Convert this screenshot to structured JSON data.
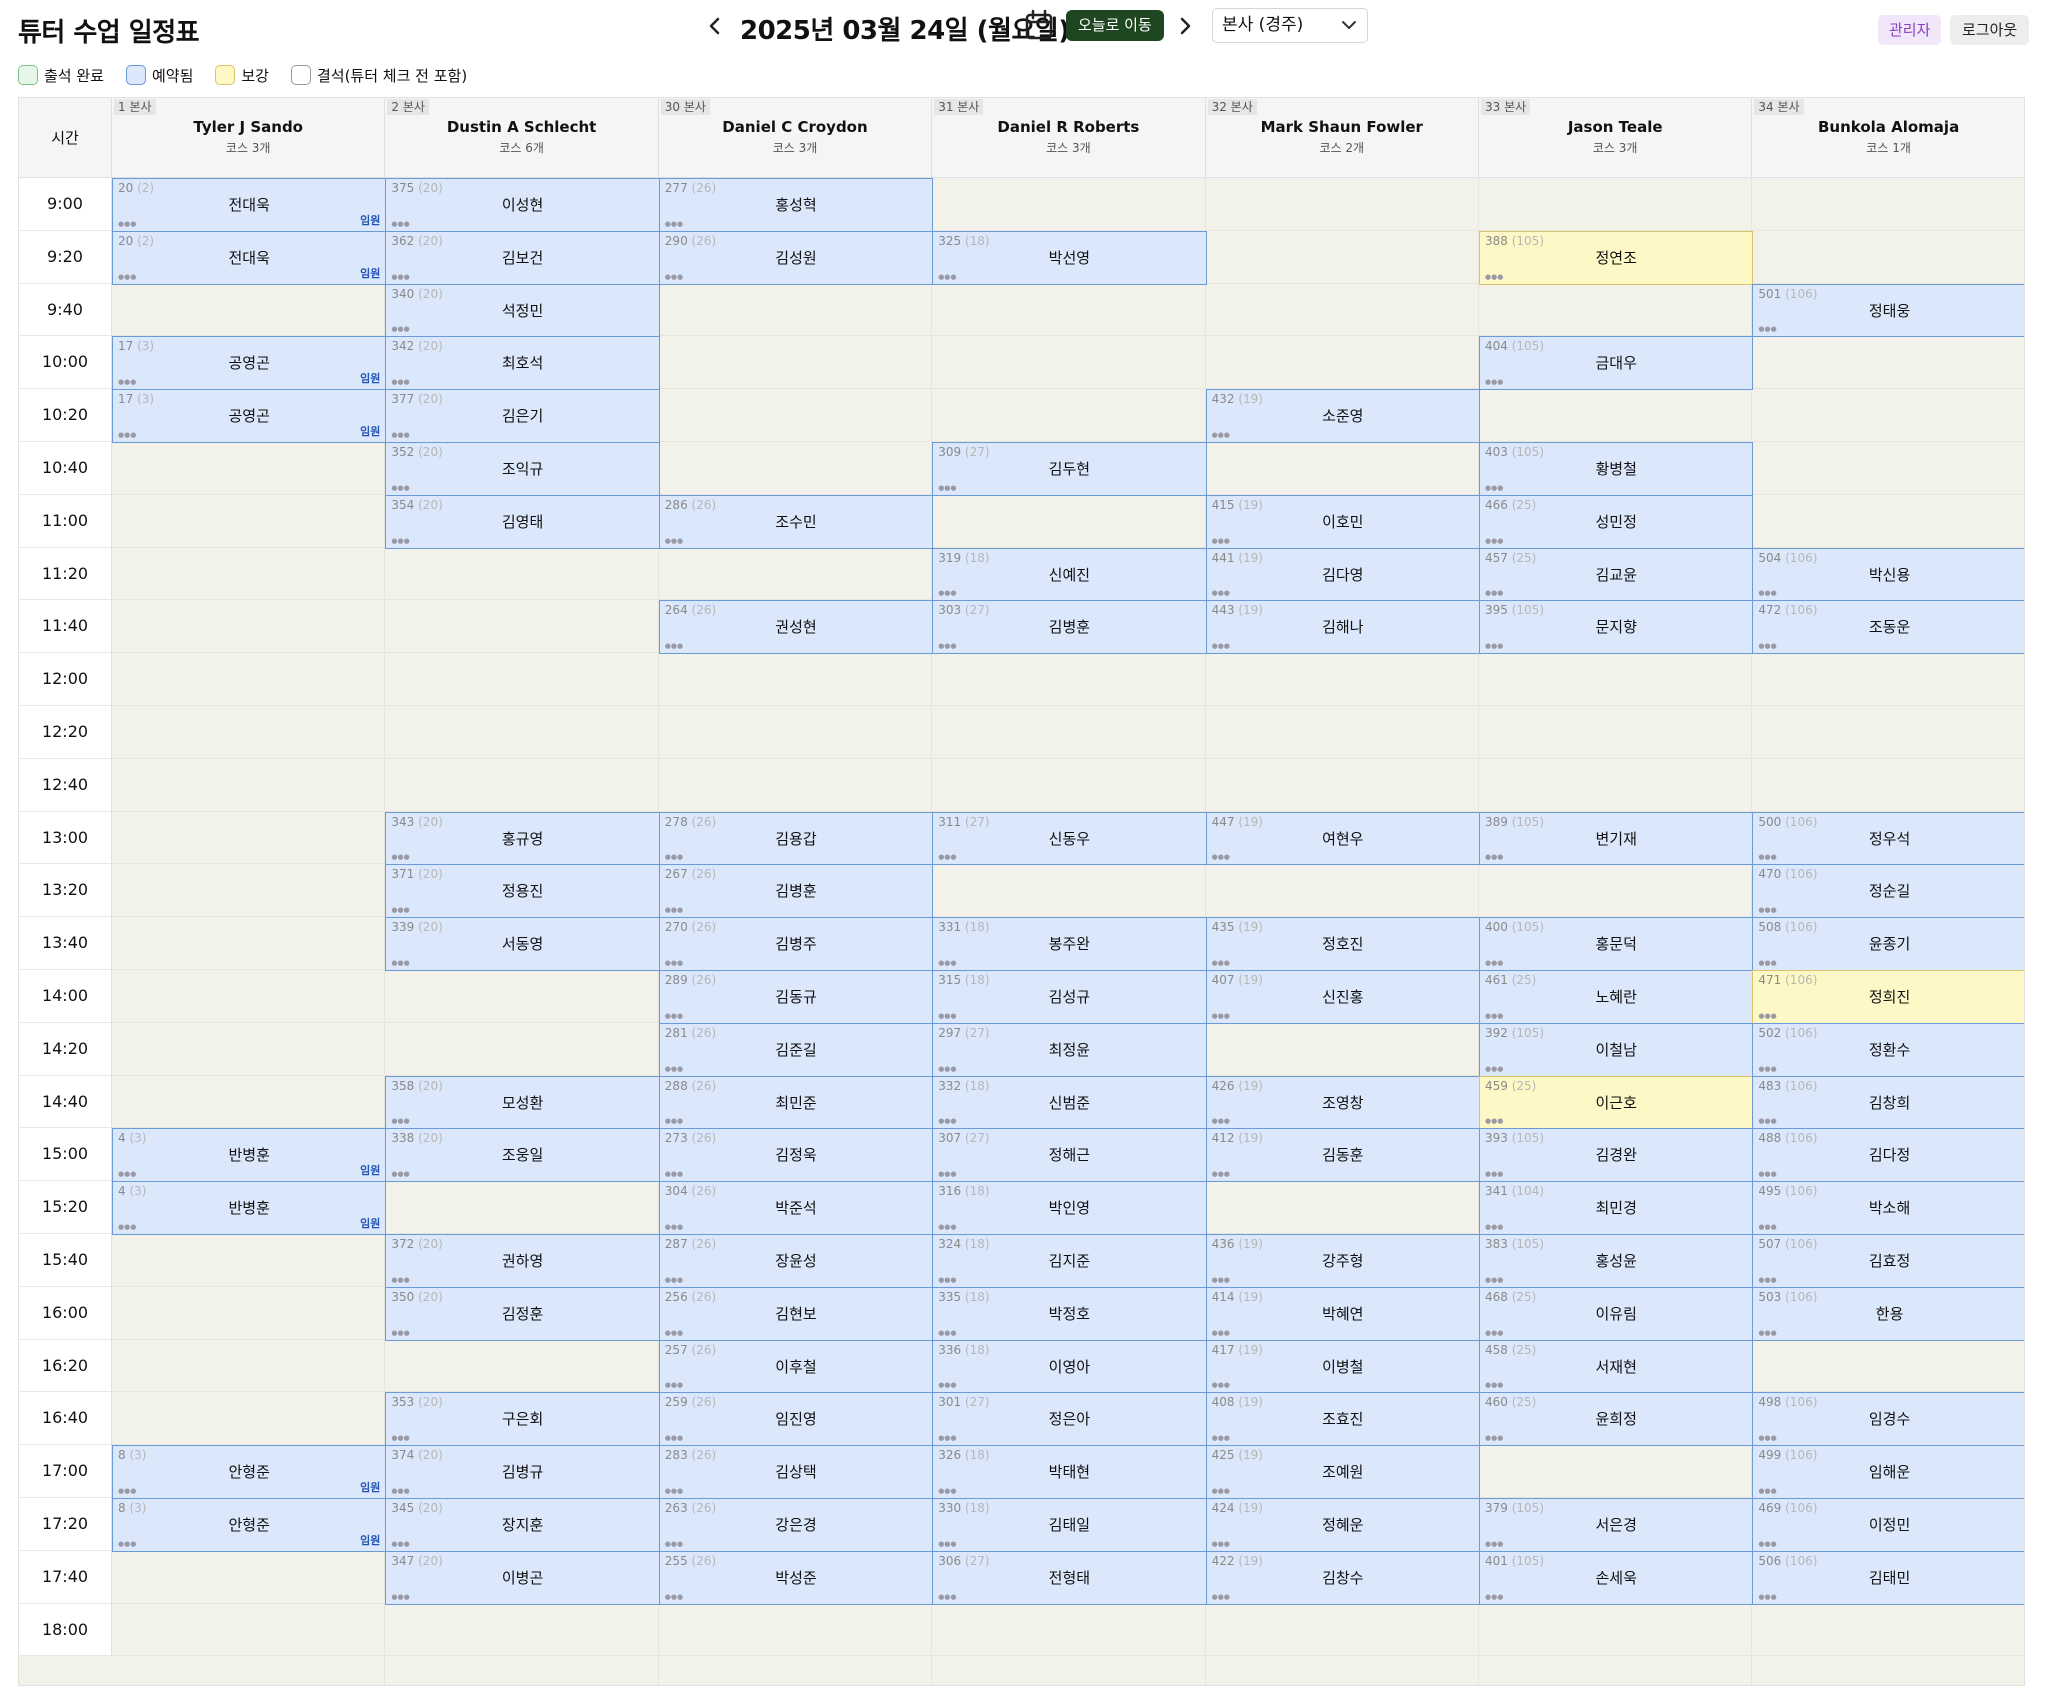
{
  "header": {
    "title": "튜터 수업 일정표",
    "date": "2025년 03월 24일 (월요일)",
    "today_label": "오늘로 이동",
    "branch": "본사 (경주)",
    "admin_label": "관리자",
    "logout_label": "로그아웃",
    "prev_icon": "chevron-left-icon",
    "next_icon": "chevron-right-icon",
    "calendar_icon": "calendar-icon"
  },
  "legend": [
    {
      "label": "출석 완료",
      "color": "#e6f7ea",
      "border": "#7cc68e"
    },
    {
      "label": "예약됨",
      "color": "#dbe7fa",
      "border": "#6b9ad6"
    },
    {
      "label": "보강",
      "color": "#fef7c6",
      "border": "#d9c46a"
    },
    {
      "label": "결석(튜터 체크 전 포함)",
      "color": "#ffffff",
      "border": "#9a9a9a"
    }
  ],
  "time_header": "시간",
  "times": [
    "9:00",
    "9:20",
    "9:40",
    "10:00",
    "10:20",
    "10:40",
    "11:00",
    "11:20",
    "11:40",
    "12:00",
    "12:20",
    "12:40",
    "13:00",
    "13:20",
    "13:40",
    "14:00",
    "14:20",
    "14:40",
    "15:00",
    "15:20",
    "15:40",
    "16:00",
    "16:20",
    "16:40",
    "17:00",
    "17:20",
    "17:40",
    "18:00"
  ],
  "tutors": [
    {
      "tag": "1 본사",
      "name": "Tyler J Sando",
      "courses": "코스 3개"
    },
    {
      "tag": "2 본사",
      "name": "Dustin A Schlecht",
      "courses": "코스 6개"
    },
    {
      "tag": "30 본사",
      "name": "Daniel C Croydon",
      "courses": "코스 3개"
    },
    {
      "tag": "31 본사",
      "name": "Daniel R Roberts",
      "courses": "코스 3개"
    },
    {
      "tag": "32 본사",
      "name": "Mark Shaun Fowler",
      "courses": "코스 2개"
    },
    {
      "tag": "33 본사",
      "name": "Jason Teale",
      "courses": "코스 3개"
    },
    {
      "tag": "34 본사",
      "name": "Bunkola Alomaja",
      "courses": "코스 1개"
    }
  ],
  "slot_mask": "●●●",
  "slots": [
    {
      "c": 0,
      "r": 0,
      "id": "20",
      "sub": "(2)",
      "name": "전대욱",
      "badge": "임원"
    },
    {
      "c": 0,
      "r": 1,
      "id": "20",
      "sub": "(2)",
      "name": "전대욱",
      "badge": "임원"
    },
    {
      "c": 0,
      "r": 3,
      "id": "17",
      "sub": "(3)",
      "name": "공영곤",
      "badge": "임원"
    },
    {
      "c": 0,
      "r": 4,
      "id": "17",
      "sub": "(3)",
      "name": "공영곤",
      "badge": "임원"
    },
    {
      "c": 0,
      "r": 18,
      "id": "4",
      "sub": "(3)",
      "name": "반병훈",
      "badge": "임원"
    },
    {
      "c": 0,
      "r": 19,
      "id": "4",
      "sub": "(3)",
      "name": "반병훈",
      "badge": "임원"
    },
    {
      "c": 0,
      "r": 24,
      "id": "8",
      "sub": "(3)",
      "name": "안형준",
      "badge": "임원"
    },
    {
      "c": 0,
      "r": 25,
      "id": "8",
      "sub": "(3)",
      "name": "안형준",
      "badge": "임원"
    },
    {
      "c": 1,
      "r": 0,
      "id": "375",
      "sub": "(20)",
      "name": "이성현"
    },
    {
      "c": 1,
      "r": 1,
      "id": "362",
      "sub": "(20)",
      "name": "김보건"
    },
    {
      "c": 1,
      "r": 2,
      "id": "340",
      "sub": "(20)",
      "name": "석정민"
    },
    {
      "c": 1,
      "r": 3,
      "id": "342",
      "sub": "(20)",
      "name": "최호석"
    },
    {
      "c": 1,
      "r": 4,
      "id": "377",
      "sub": "(20)",
      "name": "김은기"
    },
    {
      "c": 1,
      "r": 5,
      "id": "352",
      "sub": "(20)",
      "name": "조익규"
    },
    {
      "c": 1,
      "r": 6,
      "id": "354",
      "sub": "(20)",
      "name": "김영태"
    },
    {
      "c": 1,
      "r": 12,
      "id": "343",
      "sub": "(20)",
      "name": "홍규영"
    },
    {
      "c": 1,
      "r": 13,
      "id": "371",
      "sub": "(20)",
      "name": "정용진"
    },
    {
      "c": 1,
      "r": 14,
      "id": "339",
      "sub": "(20)",
      "name": "서동영"
    },
    {
      "c": 1,
      "r": 17,
      "id": "358",
      "sub": "(20)",
      "name": "모성환"
    },
    {
      "c": 1,
      "r": 18,
      "id": "338",
      "sub": "(20)",
      "name": "조웅일"
    },
    {
      "c": 1,
      "r": 20,
      "id": "372",
      "sub": "(20)",
      "name": "권하영"
    },
    {
      "c": 1,
      "r": 21,
      "id": "350",
      "sub": "(20)",
      "name": "김정훈"
    },
    {
      "c": 1,
      "r": 23,
      "id": "353",
      "sub": "(20)",
      "name": "구은회"
    },
    {
      "c": 1,
      "r": 24,
      "id": "374",
      "sub": "(20)",
      "name": "김병규"
    },
    {
      "c": 1,
      "r": 25,
      "id": "345",
      "sub": "(20)",
      "name": "장지훈"
    },
    {
      "c": 1,
      "r": 26,
      "id": "347",
      "sub": "(20)",
      "name": "이병곤"
    },
    {
      "c": 2,
      "r": 0,
      "id": "277",
      "sub": "(26)",
      "name": "홍성혁"
    },
    {
      "c": 2,
      "r": 1,
      "id": "290",
      "sub": "(26)",
      "name": "김성원"
    },
    {
      "c": 2,
      "r": 6,
      "id": "286",
      "sub": "(26)",
      "name": "조수민"
    },
    {
      "c": 2,
      "r": 8,
      "id": "264",
      "sub": "(26)",
      "name": "권성현"
    },
    {
      "c": 2,
      "r": 12,
      "id": "278",
      "sub": "(26)",
      "name": "김용갑"
    },
    {
      "c": 2,
      "r": 13,
      "id": "267",
      "sub": "(26)",
      "name": "김병훈"
    },
    {
      "c": 2,
      "r": 14,
      "id": "270",
      "sub": "(26)",
      "name": "김병주"
    },
    {
      "c": 2,
      "r": 15,
      "id": "289",
      "sub": "(26)",
      "name": "김동규"
    },
    {
      "c": 2,
      "r": 16,
      "id": "281",
      "sub": "(26)",
      "name": "김준길"
    },
    {
      "c": 2,
      "r": 17,
      "id": "288",
      "sub": "(26)",
      "name": "최민준"
    },
    {
      "c": 2,
      "r": 18,
      "id": "273",
      "sub": "(26)",
      "name": "김정욱"
    },
    {
      "c": 2,
      "r": 19,
      "id": "304",
      "sub": "(26)",
      "name": "박준석"
    },
    {
      "c": 2,
      "r": 20,
      "id": "287",
      "sub": "(26)",
      "name": "장윤성"
    },
    {
      "c": 2,
      "r": 21,
      "id": "256",
      "sub": "(26)",
      "name": "김현보"
    },
    {
      "c": 2,
      "r": 22,
      "id": "257",
      "sub": "(26)",
      "name": "이후철"
    },
    {
      "c": 2,
      "r": 23,
      "id": "259",
      "sub": "(26)",
      "name": "임진영"
    },
    {
      "c": 2,
      "r": 24,
      "id": "283",
      "sub": "(26)",
      "name": "김상택"
    },
    {
      "c": 2,
      "r": 25,
      "id": "263",
      "sub": "(26)",
      "name": "강은경"
    },
    {
      "c": 2,
      "r": 26,
      "id": "255",
      "sub": "(26)",
      "name": "박성준"
    },
    {
      "c": 3,
      "r": 1,
      "id": "325",
      "sub": "(18)",
      "name": "박선영"
    },
    {
      "c": 3,
      "r": 5,
      "id": "309",
      "sub": "(27)",
      "name": "김두현"
    },
    {
      "c": 3,
      "r": 7,
      "id": "319",
      "sub": "(18)",
      "name": "신예진"
    },
    {
      "c": 3,
      "r": 8,
      "id": "303",
      "sub": "(27)",
      "name": "김병훈"
    },
    {
      "c": 3,
      "r": 12,
      "id": "311",
      "sub": "(27)",
      "name": "신동우"
    },
    {
      "c": 3,
      "r": 14,
      "id": "331",
      "sub": "(18)",
      "name": "봉주완"
    },
    {
      "c": 3,
      "r": 15,
      "id": "315",
      "sub": "(18)",
      "name": "김성규"
    },
    {
      "c": 3,
      "r": 16,
      "id": "297",
      "sub": "(27)",
      "name": "최정윤"
    },
    {
      "c": 3,
      "r": 17,
      "id": "332",
      "sub": "(18)",
      "name": "신범준"
    },
    {
      "c": 3,
      "r": 18,
      "id": "307",
      "sub": "(27)",
      "name": "정해근"
    },
    {
      "c": 3,
      "r": 19,
      "id": "316",
      "sub": "(18)",
      "name": "박인영"
    },
    {
      "c": 3,
      "r": 20,
      "id": "324",
      "sub": "(18)",
      "name": "김지준"
    },
    {
      "c": 3,
      "r": 21,
      "id": "335",
      "sub": "(18)",
      "name": "박정호"
    },
    {
      "c": 3,
      "r": 22,
      "id": "336",
      "sub": "(18)",
      "name": "이영아"
    },
    {
      "c": 3,
      "r": 23,
      "id": "301",
      "sub": "(27)",
      "name": "정은아"
    },
    {
      "c": 3,
      "r": 24,
      "id": "326",
      "sub": "(18)",
      "name": "박태현"
    },
    {
      "c": 3,
      "r": 25,
      "id": "330",
      "sub": "(18)",
      "name": "김태일"
    },
    {
      "c": 3,
      "r": 26,
      "id": "306",
      "sub": "(27)",
      "name": "전형태"
    },
    {
      "c": 4,
      "r": 4,
      "id": "432",
      "sub": "(19)",
      "name": "소준영"
    },
    {
      "c": 4,
      "r": 6,
      "id": "415",
      "sub": "(19)",
      "name": "이호민"
    },
    {
      "c": 4,
      "r": 7,
      "id": "441",
      "sub": "(19)",
      "name": "김다영"
    },
    {
      "c": 4,
      "r": 8,
      "id": "443",
      "sub": "(19)",
      "name": "김해나"
    },
    {
      "c": 4,
      "r": 12,
      "id": "447",
      "sub": "(19)",
      "name": "여현우"
    },
    {
      "c": 4,
      "r": 14,
      "id": "435",
      "sub": "(19)",
      "name": "정호진"
    },
    {
      "c": 4,
      "r": 15,
      "id": "407",
      "sub": "(19)",
      "name": "신진홍"
    },
    {
      "c": 4,
      "r": 17,
      "id": "426",
      "sub": "(19)",
      "name": "조영창"
    },
    {
      "c": 4,
      "r": 18,
      "id": "412",
      "sub": "(19)",
      "name": "김동훈"
    },
    {
      "c": 4,
      "r": 20,
      "id": "436",
      "sub": "(19)",
      "name": "강주형"
    },
    {
      "c": 4,
      "r": 21,
      "id": "414",
      "sub": "(19)",
      "name": "박혜연"
    },
    {
      "c": 4,
      "r": 22,
      "id": "417",
      "sub": "(19)",
      "name": "이병철"
    },
    {
      "c": 4,
      "r": 23,
      "id": "408",
      "sub": "(19)",
      "name": "조효진"
    },
    {
      "c": 4,
      "r": 24,
      "id": "425",
      "sub": "(19)",
      "name": "조예원"
    },
    {
      "c": 4,
      "r": 25,
      "id": "424",
      "sub": "(19)",
      "name": "정혜운"
    },
    {
      "c": 4,
      "r": 26,
      "id": "422",
      "sub": "(19)",
      "name": "김창수"
    },
    {
      "c": 5,
      "r": 1,
      "id": "388",
      "sub": "(105)",
      "name": "정연조",
      "makeup": true
    },
    {
      "c": 5,
      "r": 3,
      "id": "404",
      "sub": "(105)",
      "name": "금대우"
    },
    {
      "c": 5,
      "r": 5,
      "id": "403",
      "sub": "(105)",
      "name": "황병철"
    },
    {
      "c": 5,
      "r": 6,
      "id": "466",
      "sub": "(25)",
      "name": "성민정"
    },
    {
      "c": 5,
      "r": 7,
      "id": "457",
      "sub": "(25)",
      "name": "김교윤"
    },
    {
      "c": 5,
      "r": 8,
      "id": "395",
      "sub": "(105)",
      "name": "문지향"
    },
    {
      "c": 5,
      "r": 12,
      "id": "389",
      "sub": "(105)",
      "name": "변기재"
    },
    {
      "c": 5,
      "r": 14,
      "id": "400",
      "sub": "(105)",
      "name": "홍문덕"
    },
    {
      "c": 5,
      "r": 15,
      "id": "461",
      "sub": "(25)",
      "name": "노혜란"
    },
    {
      "c": 5,
      "r": 16,
      "id": "392",
      "sub": "(105)",
      "name": "이철남"
    },
    {
      "c": 5,
      "r": 17,
      "id": "459",
      "sub": "(25)",
      "name": "이근호",
      "makeup": true
    },
    {
      "c": 5,
      "r": 18,
      "id": "393",
      "sub": "(105)",
      "name": "김경완"
    },
    {
      "c": 5,
      "r": 19,
      "id": "341",
      "sub": "(104)",
      "name": "최민경"
    },
    {
      "c": 5,
      "r": 20,
      "id": "383",
      "sub": "(105)",
      "name": "홍성윤"
    },
    {
      "c": 5,
      "r": 21,
      "id": "468",
      "sub": "(25)",
      "name": "이유림"
    },
    {
      "c": 5,
      "r": 22,
      "id": "458",
      "sub": "(25)",
      "name": "서재현"
    },
    {
      "c": 5,
      "r": 23,
      "id": "460",
      "sub": "(25)",
      "name": "윤희정"
    },
    {
      "c": 5,
      "r": 25,
      "id": "379",
      "sub": "(105)",
      "name": "서은경"
    },
    {
      "c": 5,
      "r": 26,
      "id": "401",
      "sub": "(105)",
      "name": "손세욱"
    },
    {
      "c": 6,
      "r": 2,
      "id": "501",
      "sub": "(106)",
      "name": "정태웅"
    },
    {
      "c": 6,
      "r": 7,
      "id": "504",
      "sub": "(106)",
      "name": "박신용"
    },
    {
      "c": 6,
      "r": 8,
      "id": "472",
      "sub": "(106)",
      "name": "조동운"
    },
    {
      "c": 6,
      "r": 12,
      "id": "500",
      "sub": "(106)",
      "name": "정우석"
    },
    {
      "c": 6,
      "r": 13,
      "id": "470",
      "sub": "(106)",
      "name": "정순길"
    },
    {
      "c": 6,
      "r": 14,
      "id": "508",
      "sub": "(106)",
      "name": "윤종기"
    },
    {
      "c": 6,
      "r": 15,
      "id": "471",
      "sub": "(106)",
      "name": "정희진",
      "makeup": true
    },
    {
      "c": 6,
      "r": 16,
      "id": "502",
      "sub": "(106)",
      "name": "정환수"
    },
    {
      "c": 6,
      "r": 17,
      "id": "483",
      "sub": "(106)",
      "name": "김창희"
    },
    {
      "c": 6,
      "r": 18,
      "id": "488",
      "sub": "(106)",
      "name": "김다정"
    },
    {
      "c": 6,
      "r": 19,
      "id": "495",
      "sub": "(106)",
      "name": "박소해"
    },
    {
      "c": 6,
      "r": 20,
      "id": "507",
      "sub": "(106)",
      "name": "김효정"
    },
    {
      "c": 6,
      "r": 21,
      "id": "503",
      "sub": "(106)",
      "name": "한용"
    },
    {
      "c": 6,
      "r": 23,
      "id": "498",
      "sub": "(106)",
      "name": "임경수"
    },
    {
      "c": 6,
      "r": 24,
      "id": "499",
      "sub": "(106)",
      "name": "임해운"
    },
    {
      "c": 6,
      "r": 25,
      "id": "469",
      "sub": "(106)",
      "name": "이정민"
    },
    {
      "c": 6,
      "r": 26,
      "id": "506",
      "sub": "(106)",
      "name": "김태민"
    }
  ]
}
